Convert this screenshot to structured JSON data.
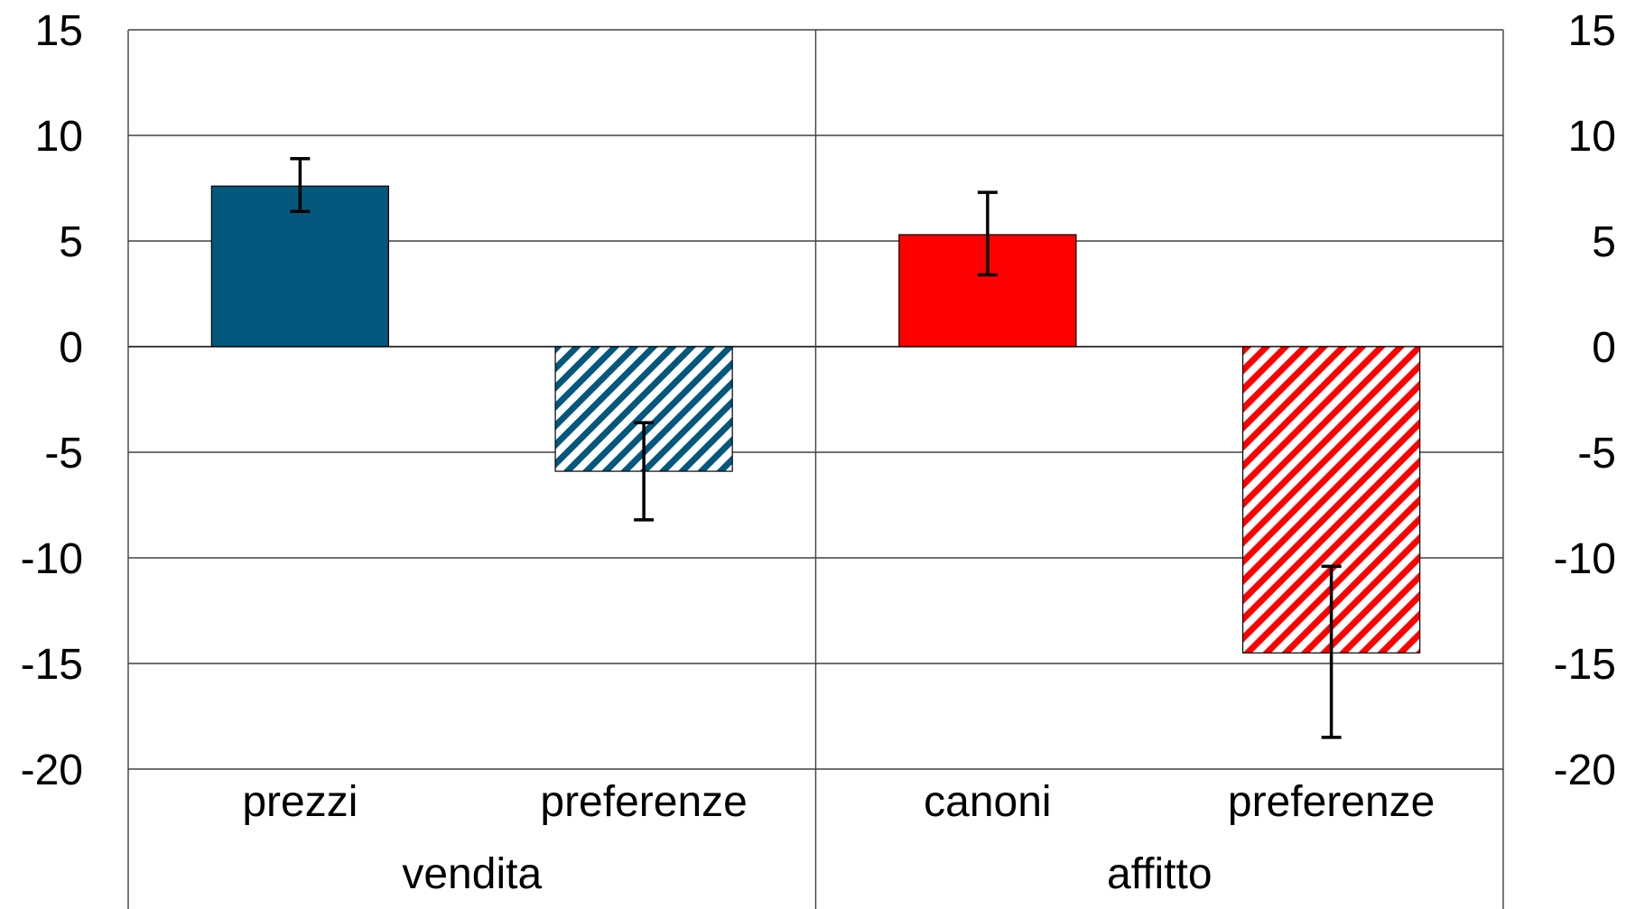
{
  "chart_data": {
    "type": "bar",
    "ylim": [
      -20,
      15
    ],
    "yticks": [
      15,
      10,
      5,
      0,
      -5,
      -10,
      -15,
      -20
    ],
    "y_axis_left": true,
    "y_axis_right": true,
    "grid": true,
    "legend": "none",
    "groups": [
      {
        "name": "vendita",
        "bars": [
          {
            "label": "prezzi",
            "value": 7.6,
            "err_low": 6.4,
            "err_high": 8.9,
            "color": "#04577d",
            "pattern": "solid"
          },
          {
            "label": "preferenze",
            "value": -5.9,
            "err_low": -8.2,
            "err_high": -3.6,
            "color": "#04577d",
            "pattern": "hatched"
          }
        ]
      },
      {
        "name": "affitto",
        "bars": [
          {
            "label": "canoni",
            "value": 5.3,
            "err_low": 3.4,
            "err_high": 7.3,
            "color": "#ff0000",
            "pattern": "solid"
          },
          {
            "label": "preferenze",
            "value": -14.5,
            "err_low": -18.5,
            "err_high": -10.4,
            "color": "#ff0000",
            "pattern": "hatched"
          }
        ]
      }
    ]
  }
}
